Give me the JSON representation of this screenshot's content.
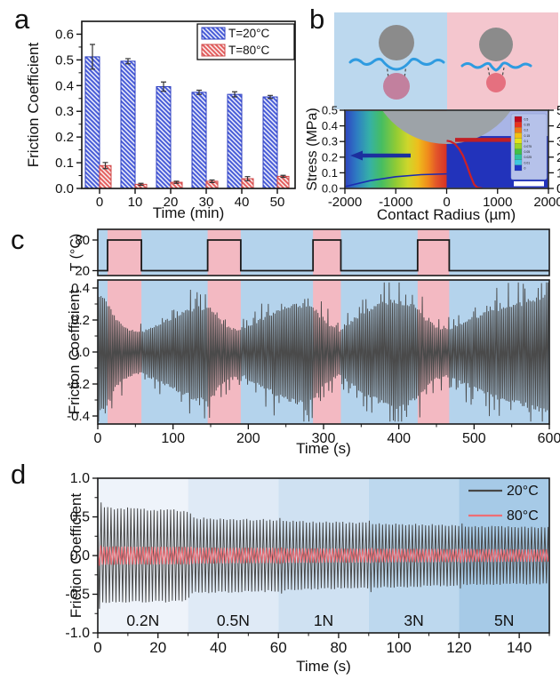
{
  "panels": {
    "a": {
      "label": "a",
      "chart_data": {
        "type": "bar",
        "xlabel": "Time (min)",
        "ylabel": "Friction Coefficient",
        "categories": [
          0,
          10,
          20,
          30,
          40,
          50
        ],
        "xtick_labels": [
          "0",
          "10",
          "20",
          "30",
          "40",
          "50"
        ],
        "ylim": [
          0,
          0.65
        ],
        "yticks": [
          0.0,
          0.1,
          0.2,
          0.3,
          0.4,
          0.5,
          0.6
        ],
        "ytick_labels": [
          "0.0",
          "0.1",
          "0.2",
          "0.3",
          "0.4",
          "0.5",
          "0.6"
        ],
        "legend_position": "top-right",
        "series": [
          {
            "name": "T=20°C",
            "color": "#4a5ed8",
            "edge": "#2c3ec0",
            "hatch": "diagonal-white",
            "values": [
              0.512,
              0.495,
              0.396,
              0.374,
              0.366,
              0.356
            ],
            "errors": [
              0.048,
              0.01,
              0.018,
              0.008,
              0.01,
              0.006
            ]
          },
          {
            "name": "T=80°C",
            "color": "#e36161",
            "edge": "#cf4747",
            "hatch": "diagonal-white",
            "values": [
              0.089,
              0.016,
              0.024,
              0.028,
              0.038,
              0.047
            ],
            "errors": [
              0.012,
              0.004,
              0.004,
              0.005,
              0.008,
              0.004
            ]
          }
        ]
      }
    },
    "b": {
      "label": "b",
      "schematic": {
        "left_bg": "#bcd8ee",
        "right_bg": "#f4c6ce",
        "ball_color": "#8b8b8b",
        "water_color": "#2f9be0",
        "left_drop_color": "#c2809e",
        "right_drop_color": "#e5707f",
        "dash_color": "#4a4a4a"
      },
      "chart_data": {
        "type": "heatmap",
        "xlabel": "Contact Radius (µm)",
        "ylabel_left": "Stress (MPa)",
        "xlim": [
          -2000,
          2000
        ],
        "xticks": [
          -2000,
          -1000,
          0,
          1000,
          2000
        ],
        "xtick_labels": [
          "-2000",
          "-1000",
          "0",
          "1000",
          "2000"
        ],
        "yticks_left": [
          0.0,
          0.1,
          0.2,
          0.3,
          0.4,
          0.5
        ],
        "ytick_labels_left": [
          "0.0",
          "0.1",
          "0.2",
          "0.3",
          "0.4",
          "0.5"
        ],
        "yticks_right": [
          0,
          1,
          2,
          3,
          4,
          5
        ],
        "ytick_labels_right": [
          "0",
          "1",
          "2",
          "3",
          "4",
          "5"
        ],
        "interface_mpa": 0.335,
        "substrate_color": "#2233bb",
        "sky_color": "#a9b5e6",
        "ball_color": "#9da3a8",
        "jet_stops": [
          "#2e43c0",
          "#2e7ec2",
          "#35b0a8",
          "#46bd62",
          "#8fcb35",
          "#cfd62b",
          "#eebd1d",
          "#f0891c",
          "#e2552a",
          "#d63226"
        ],
        "red_curve_um_mpa": [
          [
            0,
            0.305
          ],
          [
            80,
            0.3
          ],
          [
            160,
            0.285
          ],
          [
            240,
            0.255
          ],
          [
            320,
            0.21
          ],
          [
            400,
            0.145
          ],
          [
            470,
            0.08
          ],
          [
            540,
            0.025
          ],
          [
            600,
            0.006
          ],
          [
            700,
            0.0
          ]
        ],
        "blue_curve_um_mpa": [
          [
            -2000,
            0.012
          ],
          [
            -1500,
            0.05
          ],
          [
            -1000,
            0.075
          ],
          [
            -500,
            0.088
          ],
          [
            0,
            0.093
          ]
        ],
        "annotations": [
          {
            "type": "arrow",
            "color": "#1c2f9e",
            "direction": "left",
            "y_mpa": 0.21
          },
          {
            "type": "arrow",
            "color": "#c01f25",
            "direction": "right",
            "y_right_axis": 3.1
          }
        ],
        "colorbar_labels": [
          "0.5",
          "0.35",
          "0.2",
          "0.15",
          "0.1",
          "0.075",
          "0.05",
          "0.025",
          "0.01",
          "0"
        ],
        "colorbar_colors": [
          "#c00a1e",
          "#e8321f",
          "#f07818",
          "#f2c013",
          "#e6e418",
          "#9cd426",
          "#42c046",
          "#2fc4a0",
          "#3ec8e0",
          "#2038c8"
        ]
      }
    },
    "c": {
      "label": "c",
      "chart_data": {
        "type": "line",
        "xlabel": "Time (s)",
        "xlim": [
          0,
          600
        ],
        "xticks": [
          0,
          100,
          200,
          300,
          400,
          500,
          600
        ],
        "xtick_labels": [
          "0",
          "100",
          "200",
          "300",
          "400",
          "500",
          "600"
        ],
        "hot_bands_s": [
          [
            13,
            58
          ],
          [
            146,
            190
          ],
          [
            286,
            323
          ],
          [
            425,
            467
          ]
        ],
        "colors": {
          "cold_bg": "#b4d3ec",
          "hot_bg": "#f3b9c2",
          "signal": "#4a4a4a"
        },
        "temp_strip": {
          "ylabel": "T (°C)",
          "high": 80,
          "low": 20,
          "ytick_labels": [
            "80",
            "20"
          ]
        },
        "main": {
          "ylabel": "Friction Coefficient",
          "ylim": [
            -0.45,
            0.45
          ],
          "yticks": [
            0.4,
            0.2,
            0.0,
            -0.2,
            -0.4
          ],
          "ytick_labels": [
            "0.4",
            "0.2",
            "0.0",
            "-0.2",
            "-0.4"
          ],
          "envelope_t_amp": [
            [
              0,
              0.35
            ],
            [
              8,
              0.33
            ],
            [
              13,
              0.3
            ],
            [
              25,
              0.2
            ],
            [
              40,
              0.14
            ],
            [
              58,
              0.12
            ],
            [
              70,
              0.15
            ],
            [
              90,
              0.19
            ],
            [
              110,
              0.235
            ],
            [
              130,
              0.27
            ],
            [
              146,
              0.28
            ],
            [
              160,
              0.2
            ],
            [
              175,
              0.15
            ],
            [
              190,
              0.13
            ],
            [
              205,
              0.17
            ],
            [
              225,
              0.22
            ],
            [
              245,
              0.26
            ],
            [
              265,
              0.29
            ],
            [
              286,
              0.28
            ],
            [
              298,
              0.2
            ],
            [
              310,
              0.16
            ],
            [
              323,
              0.13
            ],
            [
              340,
              0.2
            ],
            [
              360,
              0.26
            ],
            [
              380,
              0.3
            ],
            [
              395,
              0.32
            ],
            [
              410,
              0.3
            ],
            [
              425,
              0.27
            ],
            [
              438,
              0.19
            ],
            [
              452,
              0.15
            ],
            [
              467,
              0.14
            ],
            [
              480,
              0.17
            ],
            [
              500,
              0.21
            ],
            [
              520,
              0.25
            ],
            [
              545,
              0.28
            ],
            [
              570,
              0.31
            ],
            [
              590,
              0.34
            ],
            [
              600,
              0.35
            ]
          ]
        }
      }
    },
    "d": {
      "label": "d",
      "chart_data": {
        "type": "line",
        "xlabel": "Time (s)",
        "ylabel": "Friction Coefficient",
        "xlim": [
          0,
          150
        ],
        "xticks": [
          0,
          20,
          40,
          60,
          80,
          100,
          120,
          140
        ],
        "xtick_labels": [
          "0",
          "20",
          "40",
          "60",
          "80",
          "100",
          "120",
          "140"
        ],
        "ylim": [
          -1.0,
          1.0
        ],
        "yticks": [
          1.0,
          0.5,
          0.0,
          -0.5,
          -1.0
        ],
        "ytick_labels": [
          "1.0",
          "0.5",
          "0.0",
          "-0.5",
          "-1.0"
        ],
        "legend_position": "top-right",
        "series": [
          {
            "name": "20°C",
            "color": "#474747"
          },
          {
            "name": "80°C",
            "color": "#ee6e76"
          }
        ],
        "segments": [
          {
            "label": "0.2N",
            "t": [
              0,
              30
            ],
            "bg": "#eef3fa",
            "amp_20": 0.6,
            "amp_80": 0.115
          },
          {
            "label": "0.5N",
            "t": [
              30,
              60
            ],
            "bg": "#dfeaf6",
            "amp_20": 0.47,
            "amp_80": 0.1
          },
          {
            "label": "1N",
            "t": [
              60,
              90
            ],
            "bg": "#cfe1f2",
            "amp_20": 0.43,
            "amp_80": 0.092
          },
          {
            "label": "3N",
            "t": [
              90,
              120
            ],
            "bg": "#bdd8ee",
            "amp_20": 0.4,
            "amp_80": 0.086
          },
          {
            "label": "5N",
            "t": [
              120,
              150
            ],
            "bg": "#a6cae7",
            "amp_20": 0.37,
            "amp_80": 0.082
          }
        ]
      }
    }
  }
}
